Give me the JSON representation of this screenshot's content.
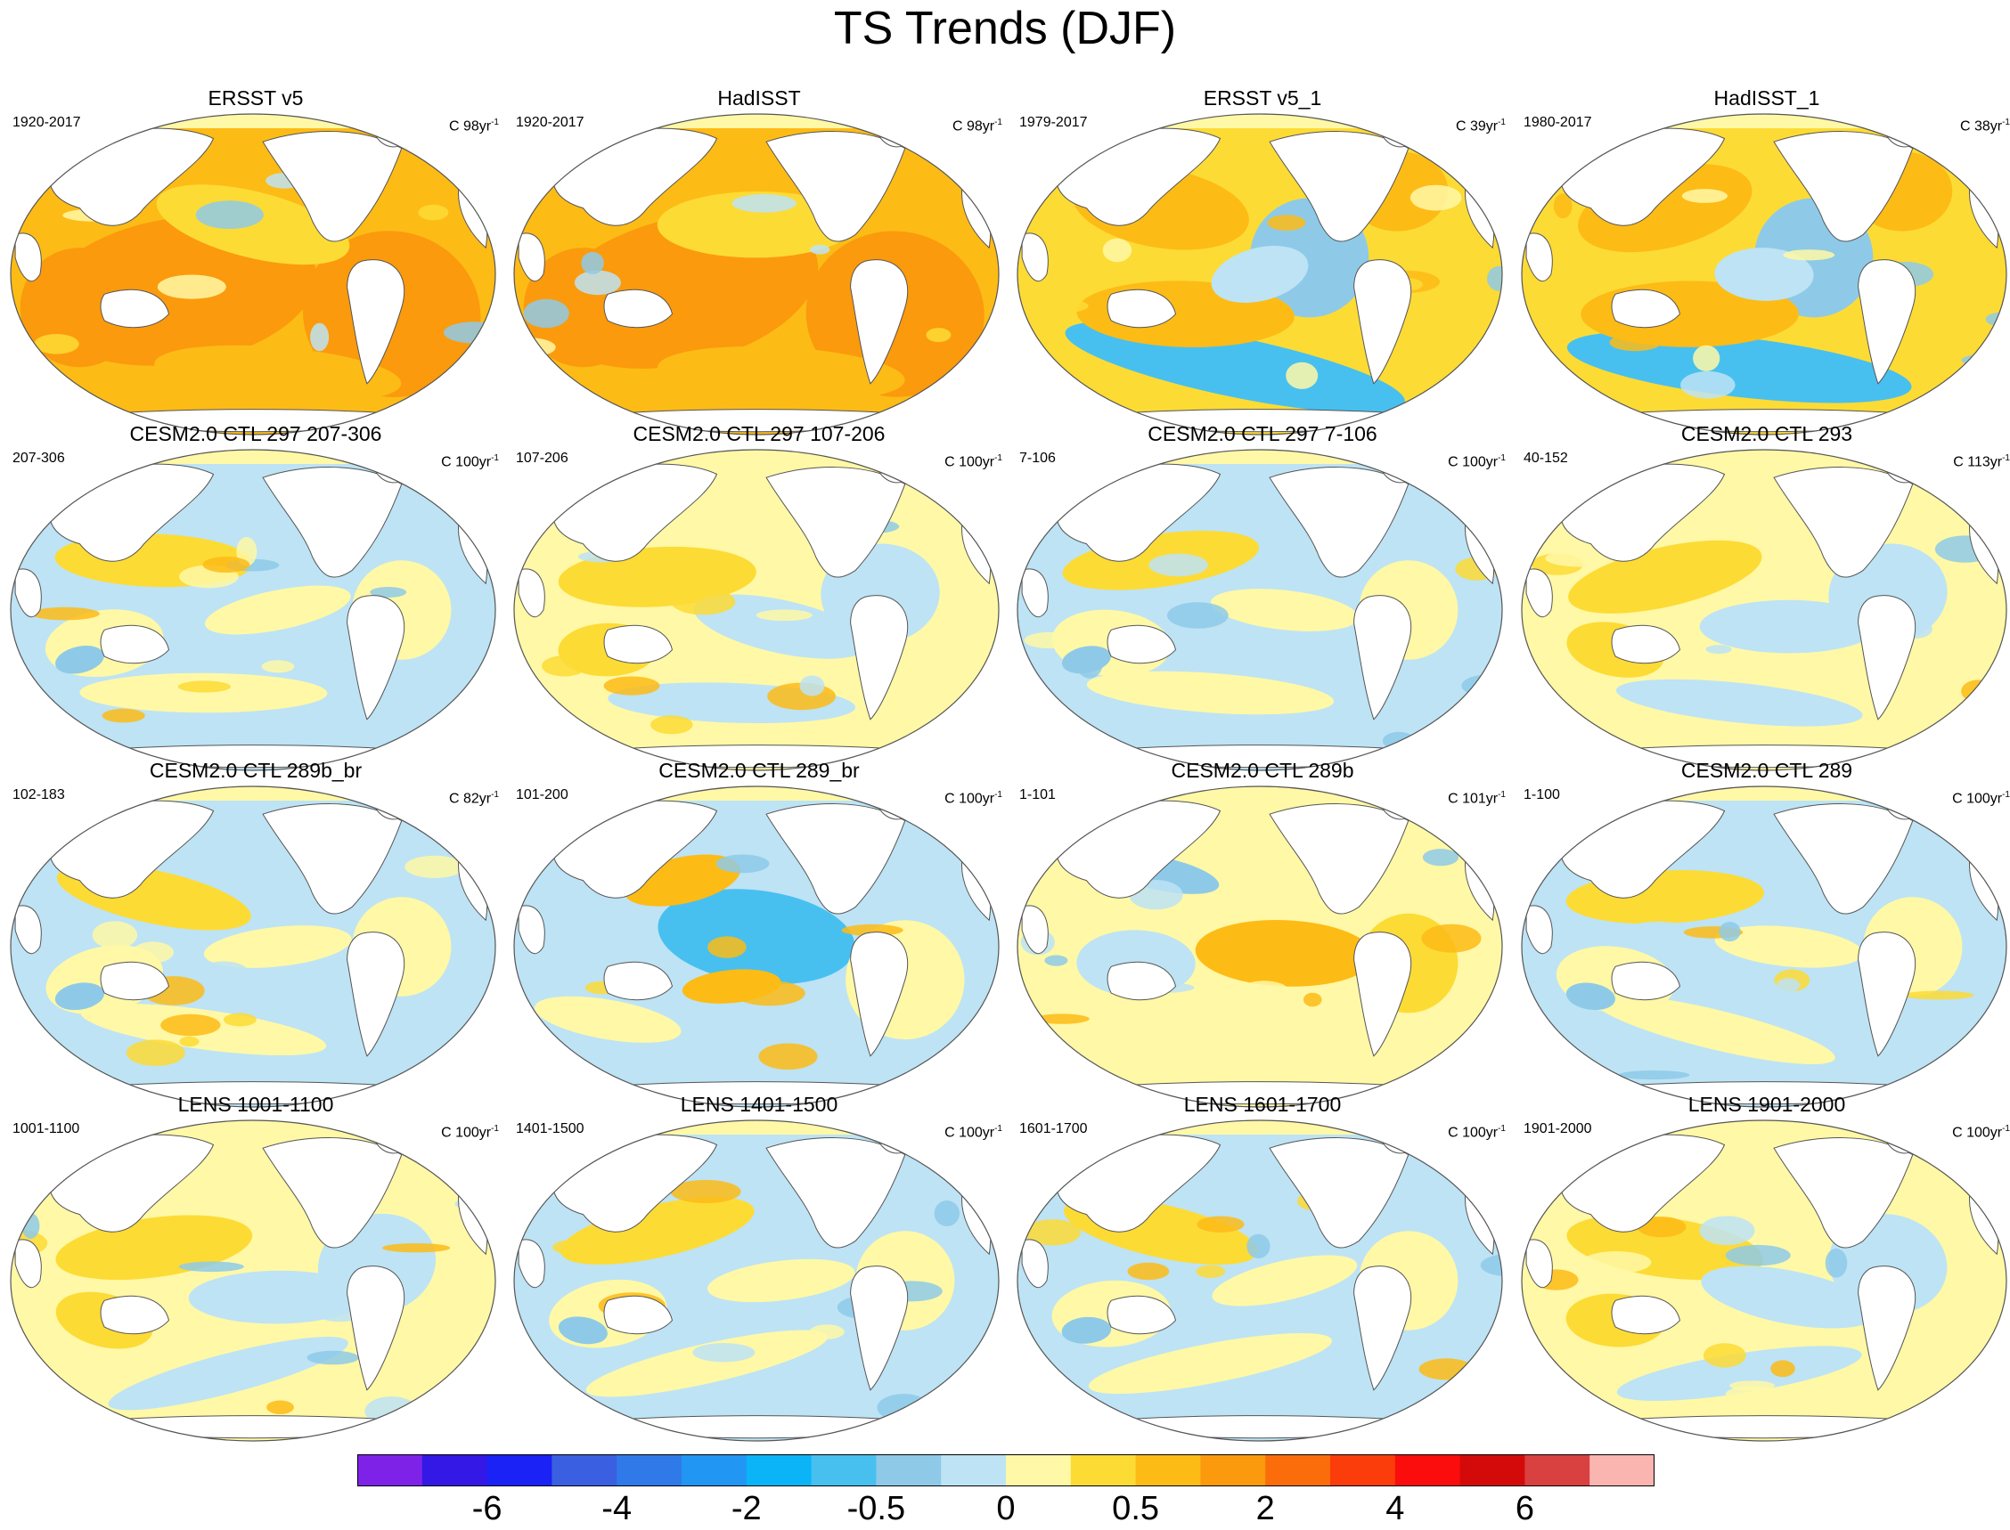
{
  "title": "TS Trends (DJF)",
  "colors": {
    "ocean_base_warm": "#fdd835",
    "ocean_base_cool": "#b3dcf2",
    "land": "#ffffff",
    "outline": "#555555"
  },
  "chart_data": {
    "type": "contour-map-panels",
    "title": "TS Trends (DJF)",
    "projection": "Robinson (Pacific-centered)",
    "panels": [
      {
        "title": "ERSST v5",
        "period": "1920-2017",
        "scale_prefix": "C ",
        "scale_value": "98yr",
        "scale_exp": "-1",
        "pattern": "warm-strong"
      },
      {
        "title": "HadISST",
        "period": "1920-2017",
        "scale_prefix": "C ",
        "scale_value": "98yr",
        "scale_exp": "-1",
        "pattern": "warm-strong"
      },
      {
        "title": "ERSST v5_1",
        "period": "1979-2017",
        "scale_prefix": "C ",
        "scale_value": "39yr",
        "scale_exp": "-1",
        "pattern": "warm-cool-east"
      },
      {
        "title": "HadISST_1",
        "period": "1980-2017",
        "scale_prefix": "C ",
        "scale_value": "38yr",
        "scale_exp": "-1",
        "pattern": "warm-cool-east"
      },
      {
        "title": "CESM2.0 CTL 297 207-306",
        "period": "207-306",
        "scale_prefix": "C ",
        "scale_value": "100yr",
        "scale_exp": "-1",
        "pattern": "mixed-cool"
      },
      {
        "title": "CESM2.0 CTL 297 107-206",
        "period": "107-206",
        "scale_prefix": "C ",
        "scale_value": "100yr",
        "scale_exp": "-1",
        "pattern": "mixed-warm"
      },
      {
        "title": "CESM2.0 CTL 297 7-106",
        "period": "7-106",
        "scale_prefix": "C ",
        "scale_value": "100yr",
        "scale_exp": "-1",
        "pattern": "mixed-cool"
      },
      {
        "title": "CESM2.0 CTL 293",
        "period": "40-152",
        "scale_prefix": "C ",
        "scale_value": "113yr",
        "scale_exp": "-1",
        "pattern": "mixed-warm"
      },
      {
        "title": "CESM2.0 CTL 289b_br",
        "period": "102-183",
        "scale_prefix": "C ",
        "scale_value": "82yr",
        "scale_exp": "-1",
        "pattern": "mixed-cool"
      },
      {
        "title": "CESM2.0 CTL 289_br",
        "period": "101-200",
        "scale_prefix": "C ",
        "scale_value": "100yr",
        "scale_exp": "-1",
        "pattern": "cool-pacific"
      },
      {
        "title": "CESM2.0 CTL 289b",
        "period": "1-101",
        "scale_prefix": "C ",
        "scale_value": "101yr",
        "scale_exp": "-1",
        "pattern": "warm-pacific"
      },
      {
        "title": "CESM2.0 CTL 289",
        "period": "1-100",
        "scale_prefix": "C ",
        "scale_value": "100yr",
        "scale_exp": "-1",
        "pattern": "mixed-cool"
      },
      {
        "title": "LENS 1001-1100",
        "period": "1001-1100",
        "scale_prefix": "C ",
        "scale_value": "100yr",
        "scale_exp": "-1",
        "pattern": "mixed-warm"
      },
      {
        "title": "LENS 1401-1500",
        "period": "1401-1500",
        "scale_prefix": "C ",
        "scale_value": "100yr",
        "scale_exp": "-1",
        "pattern": "mixed-cool"
      },
      {
        "title": "LENS 1601-1700",
        "period": "1601-1700",
        "scale_prefix": "C ",
        "scale_value": "100yr",
        "scale_exp": "-1",
        "pattern": "mixed-cool"
      },
      {
        "title": "LENS 1901-2000",
        "period": "1901-2000",
        "scale_prefix": "C ",
        "scale_value": "100yr",
        "scale_exp": "-1",
        "pattern": "mixed-warm"
      }
    ],
    "colorbar": {
      "colors": [
        "#7f22e8",
        "#3318e6",
        "#1a22f5",
        "#3a5fe0",
        "#2f7ae8",
        "#2196f3",
        "#0ab4f7",
        "#47c0f0",
        "#8ecae8",
        "#bde3f5",
        "#fff8a6",
        "#fddb35",
        "#fdbb16",
        "#fb9a0c",
        "#fb6d0a",
        "#fa3d0a",
        "#fc0d0d",
        "#d40a0a",
        "#d94040",
        "#fbb5b0"
      ],
      "tick_labels": [
        {
          "label": "-6",
          "boundary": 2
        },
        {
          "label": "-4",
          "boundary": 4
        },
        {
          "label": "-2",
          "boundary": 6
        },
        {
          "label": "-0.5",
          "boundary": 8
        },
        {
          "label": "0",
          "boundary": 10
        },
        {
          "label": "0.5",
          "boundary": 12
        },
        {
          "label": "2",
          "boundary": 14
        },
        {
          "label": "4",
          "boundary": 16
        },
        {
          "label": "6",
          "boundary": 18
        }
      ]
    }
  }
}
